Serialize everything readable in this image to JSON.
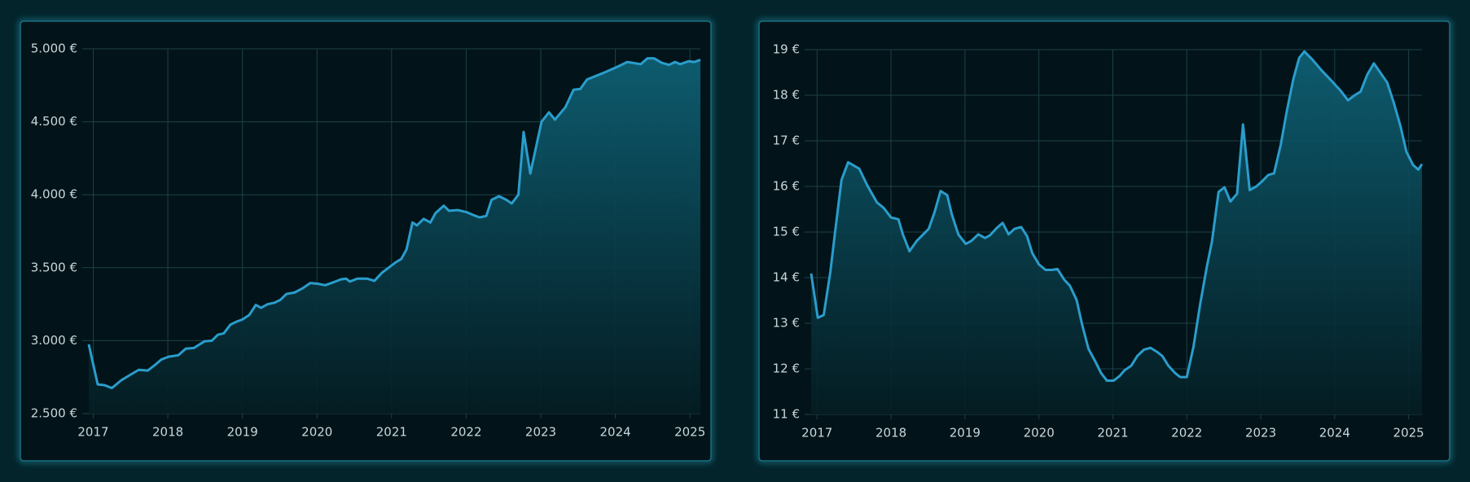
{
  "chart_data": [
    {
      "type": "line",
      "color": "#2a9dcc",
      "grid": true,
      "x": [
        2016.94,
        2017.06,
        2017.15,
        2017.25,
        2017.38,
        2017.51,
        2017.61,
        2017.73,
        2017.82,
        2017.91,
        2018.01,
        2018.14,
        2018.24,
        2018.35,
        2018.49,
        2018.59,
        2018.67,
        2018.75,
        2018.84,
        2018.92,
        2019.0,
        2019.09,
        2019.18,
        2019.25,
        2019.34,
        2019.43,
        2019.51,
        2019.59,
        2019.7,
        2019.81,
        2019.91,
        2020.01,
        2020.11,
        2020.22,
        2020.32,
        2020.39,
        2020.44,
        2020.54,
        2020.67,
        2020.77,
        2020.87,
        2020.96,
        2021.05,
        2021.13,
        2021.2,
        2021.28,
        2021.34,
        2021.43,
        2021.52,
        2021.59,
        2021.7,
        2021.77,
        2021.89,
        2022.01,
        2022.1,
        2022.18,
        2022.27,
        2022.34,
        2022.44,
        2022.54,
        2022.61,
        2022.7,
        2022.77,
        2022.86,
        2023.01,
        2023.11,
        2023.19,
        2023.33,
        2023.44,
        2023.53,
        2023.62,
        2023.84,
        2024.06,
        2024.16,
        2024.34,
        2024.43,
        2024.52,
        2024.62,
        2024.72,
        2024.8,
        2024.87,
        2024.98,
        2025.06,
        2025.14
      ],
      "values": [
        2975,
        2700,
        2695,
        2675,
        2730,
        2770,
        2800,
        2795,
        2830,
        2870,
        2890,
        2900,
        2945,
        2950,
        2995,
        3000,
        3040,
        3050,
        3110,
        3130,
        3145,
        3175,
        3245,
        3225,
        3250,
        3260,
        3280,
        3320,
        3330,
        3360,
        3395,
        3390,
        3380,
        3400,
        3420,
        3425,
        3405,
        3425,
        3425,
        3410,
        3465,
        3500,
        3535,
        3560,
        3625,
        3810,
        3790,
        3835,
        3810,
        3875,
        3925,
        3890,
        3895,
        3880,
        3860,
        3845,
        3855,
        3965,
        3990,
        3965,
        3940,
        4000,
        4430,
        4145,
        4500,
        4565,
        4515,
        4600,
        4720,
        4725,
        4790,
        4835,
        4885,
        4910,
        4895,
        4935,
        4935,
        4905,
        4890,
        4910,
        4895,
        4915,
        4910,
        4925
      ],
      "xlim": [
        2016.94,
        2025.14
      ],
      "ylim": [
        2500,
        5000
      ],
      "xticks": [
        2017,
        2018,
        2019,
        2020,
        2021,
        2022,
        2023,
        2024,
        2025
      ],
      "yticks": [
        {
          "value": 2500,
          "label": "2.500 €"
        },
        {
          "value": 3000,
          "label": "3.000 €"
        },
        {
          "value": 3500,
          "label": "3.500 €"
        },
        {
          "value": 4000,
          "label": "4.000 €"
        },
        {
          "value": 4500,
          "label": "4.500 €"
        },
        {
          "value": 5000,
          "label": "5.000 €"
        }
      ]
    },
    {
      "type": "line",
      "color": "#2a9dcc",
      "grid": true,
      "x": [
        2016.92,
        2017.01,
        2017.09,
        2017.18,
        2017.24,
        2017.33,
        2017.42,
        2017.57,
        2017.68,
        2017.81,
        2017.9,
        2018.0,
        2018.1,
        2018.16,
        2018.25,
        2018.35,
        2018.51,
        2018.59,
        2018.67,
        2018.76,
        2018.82,
        2018.91,
        2019.01,
        2019.09,
        2019.18,
        2019.27,
        2019.34,
        2019.43,
        2019.51,
        2019.59,
        2019.67,
        2019.76,
        2019.84,
        2019.91,
        2020.0,
        2020.09,
        2020.18,
        2020.25,
        2020.34,
        2020.42,
        2020.51,
        2020.58,
        2020.67,
        2020.76,
        2020.84,
        2020.92,
        2021.01,
        2021.09,
        2021.16,
        2021.25,
        2021.33,
        2021.42,
        2021.51,
        2021.59,
        2021.67,
        2021.75,
        2021.84,
        2021.91,
        2022.0,
        2022.09,
        2022.18,
        2022.27,
        2022.34,
        2022.43,
        2022.51,
        2022.59,
        2022.68,
        2022.76,
        2022.85,
        2022.94,
        2023.01,
        2023.1,
        2023.18,
        2023.27,
        2023.35,
        2023.44,
        2023.52,
        2023.59,
        2023.7,
        2023.82,
        2023.95,
        2024.08,
        2024.18,
        2024.27,
        2024.35,
        2024.44,
        2024.53,
        2024.62,
        2024.71,
        2024.8,
        2024.89,
        2024.97,
        2025.06,
        2025.13,
        2025.18
      ],
      "values": [
        14.09,
        13.12,
        13.18,
        14.13,
        14.95,
        16.14,
        16.53,
        16.39,
        16.02,
        15.65,
        15.53,
        15.32,
        15.28,
        14.95,
        14.58,
        14.81,
        15.07,
        15.44,
        15.9,
        15.81,
        15.4,
        14.95,
        14.74,
        14.81,
        14.95,
        14.87,
        14.93,
        15.09,
        15.2,
        14.95,
        15.07,
        15.11,
        14.91,
        14.54,
        14.29,
        14.17,
        14.17,
        14.19,
        13.96,
        13.82,
        13.51,
        13.0,
        12.44,
        12.17,
        11.91,
        11.74,
        11.74,
        11.84,
        11.97,
        12.07,
        12.28,
        12.42,
        12.46,
        12.38,
        12.28,
        12.07,
        11.91,
        11.82,
        11.82,
        12.48,
        13.41,
        14.23,
        14.79,
        15.88,
        15.98,
        15.67,
        15.84,
        17.36,
        15.92,
        16.0,
        16.1,
        16.25,
        16.29,
        16.91,
        17.63,
        18.35,
        18.82,
        18.96,
        18.78,
        18.55,
        18.33,
        18.1,
        17.89,
        18.0,
        18.08,
        18.45,
        18.7,
        18.49,
        18.28,
        17.83,
        17.32,
        16.76,
        16.47,
        16.37,
        16.49
      ],
      "xlim": [
        2016.92,
        2025.18
      ],
      "ylim": [
        11,
        19
      ],
      "xticks": [
        2017,
        2018,
        2019,
        2020,
        2021,
        2022,
        2023,
        2024,
        2025
      ],
      "yticks": [
        {
          "value": 11,
          "label": "11 €"
        },
        {
          "value": 12,
          "label": "12 €"
        },
        {
          "value": 13,
          "label": "13 €"
        },
        {
          "value": 14,
          "label": "14 €"
        },
        {
          "value": 15,
          "label": "15 €"
        },
        {
          "value": 16,
          "label": "16 €"
        },
        {
          "value": 17,
          "label": "17 €"
        },
        {
          "value": 18,
          "label": "18 €"
        },
        {
          "value": 19,
          "label": "19 €"
        }
      ]
    }
  ]
}
